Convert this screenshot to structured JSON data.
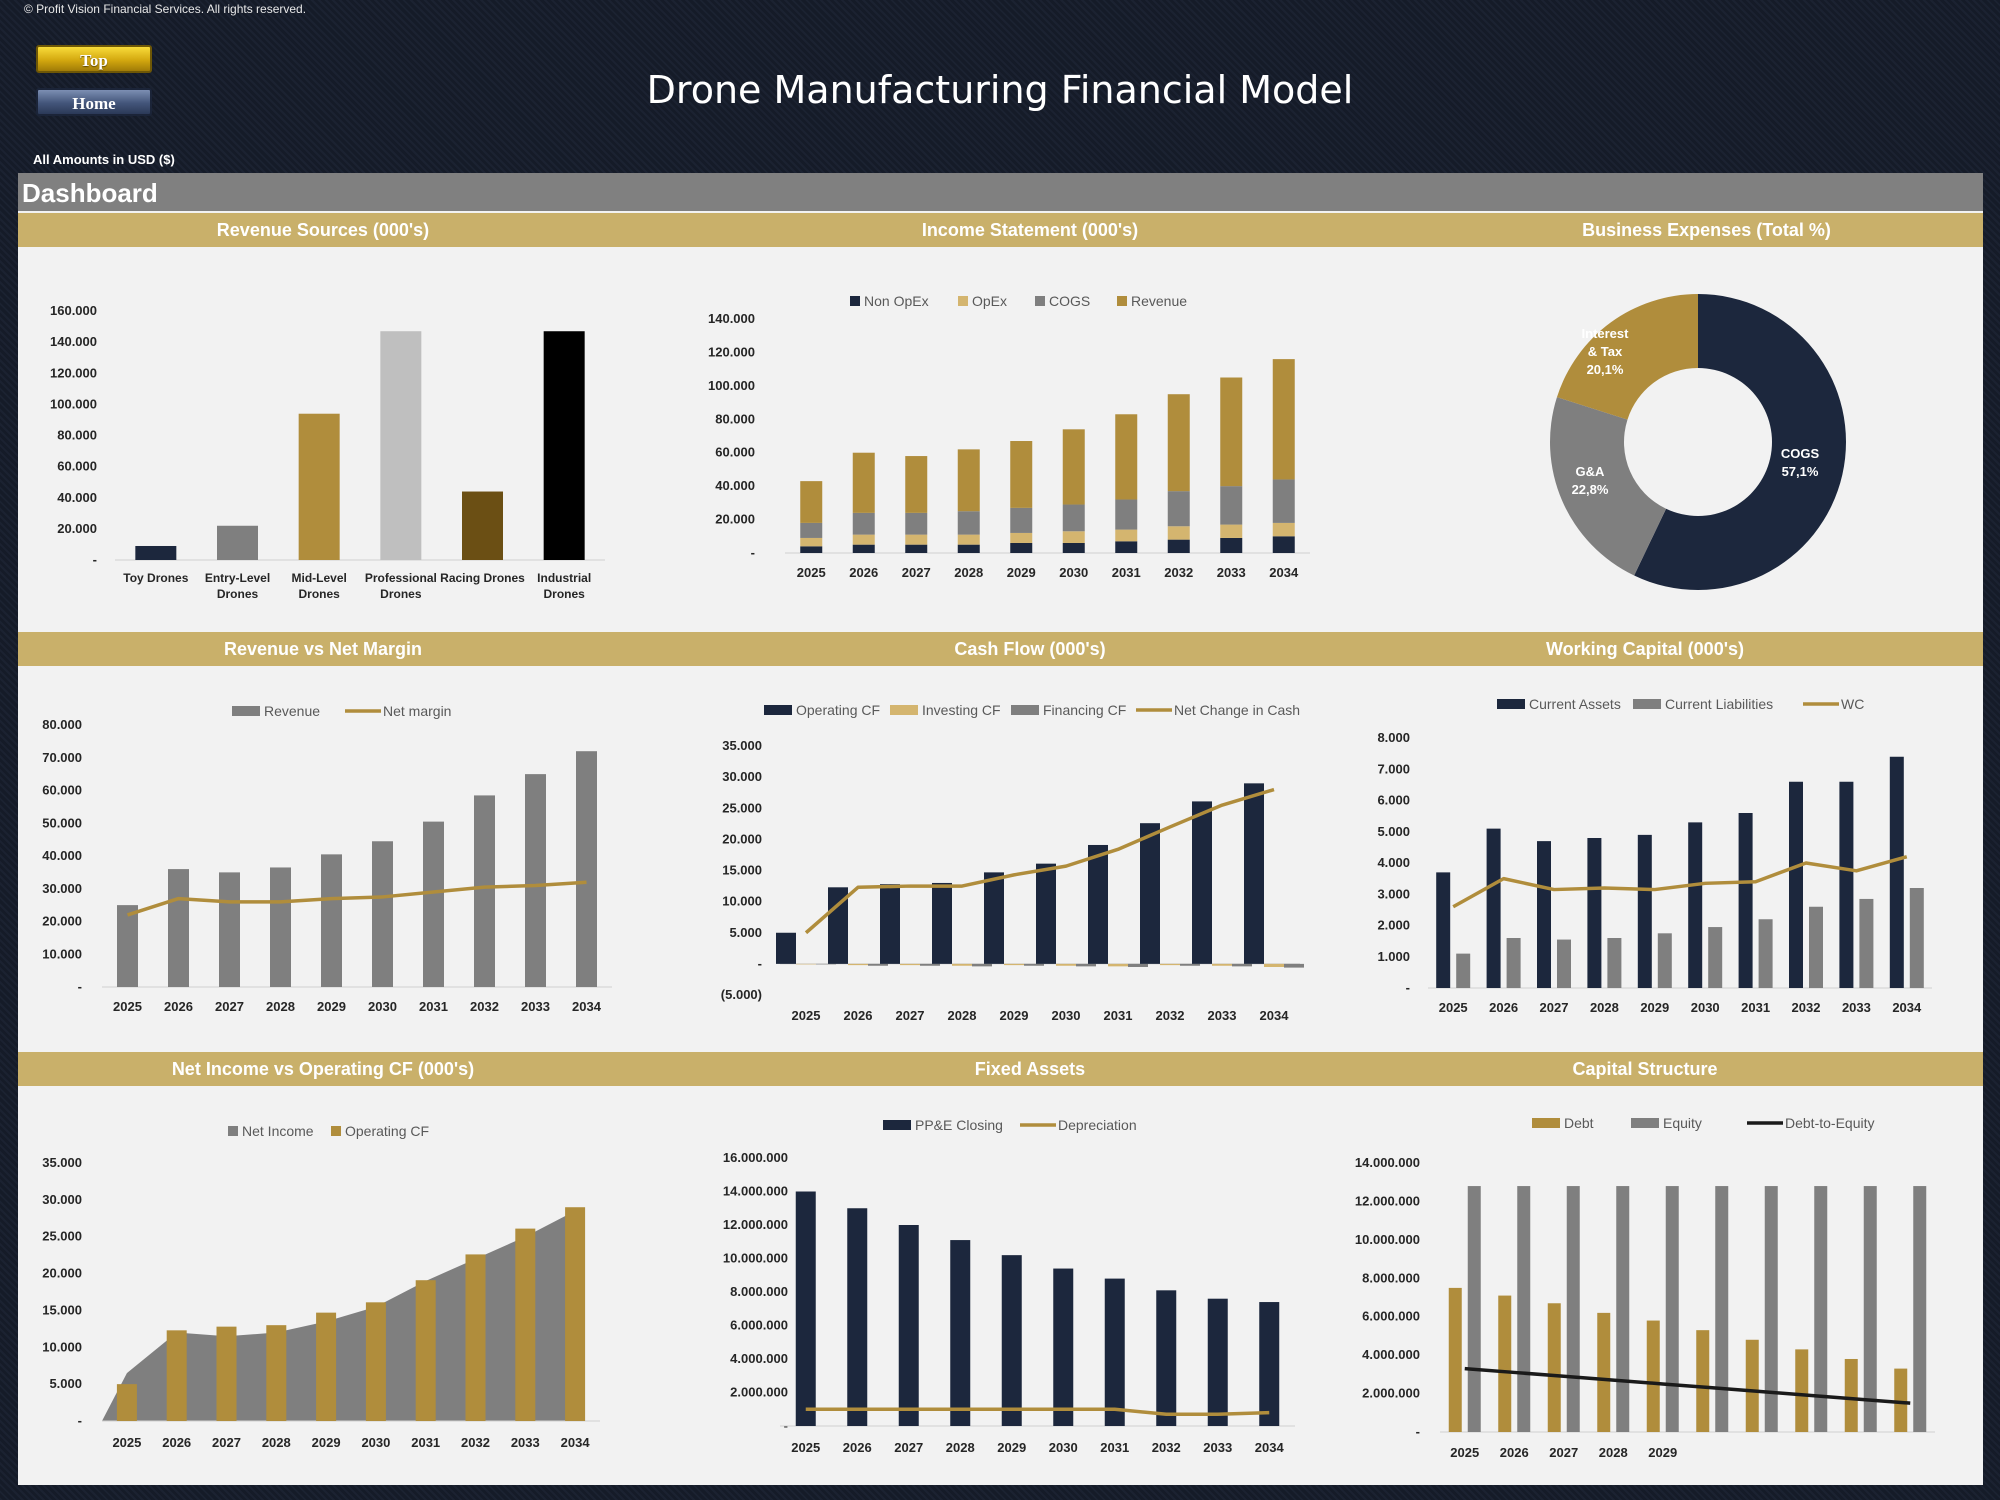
{
  "header": {
    "copyright": "© Profit Vision Financial Services. All rights reserved.",
    "top_button": "Top",
    "home_button": "Home",
    "title": "Drone Manufacturing Financial Model",
    "amounts_note": "All Amounts in  USD ($)",
    "dashboard_label": "Dashboard"
  },
  "colors": {
    "navy": "#1c273d",
    "gold": "#b08d3c",
    "gray": "#7f7f7f",
    "sand": "#d4b56f",
    "header_band": "#c9b06a"
  },
  "charts": [
    {
      "id": "revenue-sources",
      "title": "Revenue Sources (000's)",
      "type": "bar",
      "categories": [
        "Toy Drones",
        "Entry-Level Drones",
        "Mid-Level Drones",
        "Professional Drones",
        "Racing Drones",
        "Industrial Drones"
      ],
      "category_lines": [
        [
          "Toy Drones"
        ],
        [
          "Entry-Level",
          "Drones"
        ],
        [
          "Mid-Level",
          "Drones"
        ],
        [
          "Professional",
          "Drones"
        ],
        [
          "Racing Drones"
        ],
        [
          "Industrial",
          "Drones"
        ]
      ],
      "values": [
        9000,
        22000,
        94000,
        147000,
        44000,
        147000
      ],
      "bar_colors": [
        "#1c273d",
        "#7f7f7f",
        "#b08d3c",
        "#bfbfbf",
        "#6b4f14",
        "#000000"
      ],
      "ylim": [
        0,
        160000
      ],
      "yticks": [
        0,
        20000,
        40000,
        60000,
        80000,
        100000,
        120000,
        140000,
        160000
      ],
      "ytick_labels": [
        "-",
        "20.000",
        "40.000",
        "60.000",
        "80.000",
        "100.000",
        "120.000",
        "140.000",
        "160.000"
      ]
    },
    {
      "id": "income-statement",
      "title": "Income Statement (000's)",
      "type": "bar",
      "stacked": true,
      "categories": [
        "2025",
        "2026",
        "2027",
        "2028",
        "2029",
        "2030",
        "2031",
        "2032",
        "2033",
        "2034"
      ],
      "legend": [
        "Non OpEx",
        "OpEx",
        "COGS",
        "Revenue"
      ],
      "series": [
        {
          "name": "Non OpEx",
          "color": "#1c273d",
          "values": [
            4000,
            5000,
            5000,
            5000,
            6000,
            6000,
            7000,
            8000,
            9000,
            10000
          ]
        },
        {
          "name": "OpEx",
          "color": "#d4b56f",
          "values": [
            5000,
            6000,
            6000,
            6000,
            6000,
            7000,
            7000,
            8000,
            8000,
            8000
          ]
        },
        {
          "name": "COGS",
          "color": "#7f7f7f",
          "values": [
            9000,
            13000,
            13000,
            14000,
            15000,
            16000,
            18000,
            21000,
            23000,
            26000
          ]
        },
        {
          "name": "Revenue",
          "color": "#b08d3c",
          "values": [
            25000,
            36000,
            34000,
            37000,
            40000,
            45000,
            51000,
            58000,
            65000,
            72000
          ]
        }
      ],
      "ylim": [
        0,
        140000
      ],
      "yticks": [
        0,
        20000,
        40000,
        60000,
        80000,
        100000,
        120000,
        140000
      ],
      "ytick_labels": [
        "-",
        "20.000",
        "40.000",
        "60.000",
        "80.000",
        "100.000",
        "120.000",
        "140.000"
      ]
    },
    {
      "id": "business-expenses",
      "title": "Business Expenses (Total %)",
      "type": "pie",
      "donut": true,
      "slices": [
        {
          "label": "COGS",
          "value": 57.1,
          "value_label": "57,1%",
          "color": "#1c273d"
        },
        {
          "label": "G&A",
          "value": 22.8,
          "value_label": "22,8%",
          "color": "#7f7f7f"
        },
        {
          "label": "Interest & Tax",
          "label_lines": [
            "Interest",
            "& Tax"
          ],
          "value": 20.1,
          "value_label": "20,1%",
          "color": "#b08d3c"
        }
      ]
    },
    {
      "id": "revenue-vs-net-margin",
      "title": "Revenue vs Net Margin",
      "type": "bar",
      "categories": [
        "2025",
        "2026",
        "2027",
        "2028",
        "2029",
        "2030",
        "2031",
        "2032",
        "2033",
        "2034"
      ],
      "legend": [
        "Revenue",
        "Net margin"
      ],
      "series": [
        {
          "name": "Revenue",
          "kind": "bar",
          "color": "#7f7f7f",
          "values": [
            25000,
            36000,
            35000,
            36500,
            40500,
            44500,
            50500,
            58500,
            65000,
            72000
          ]
        },
        {
          "name": "Net margin",
          "kind": "line",
          "color": "#b08d3c",
          "values": [
            22000,
            27000,
            26000,
            26000,
            27000,
            27500,
            29000,
            30500,
            31000,
            32000
          ]
        }
      ],
      "ylim": [
        0,
        80000
      ],
      "yticks": [
        0,
        10000,
        20000,
        30000,
        40000,
        50000,
        60000,
        70000,
        80000
      ],
      "ytick_labels": [
        "-",
        "10.000",
        "20.000",
        "30.000",
        "40.000",
        "50.000",
        "60.000",
        "70.000",
        "80.000"
      ]
    },
    {
      "id": "cash-flow",
      "title": "Cash Flow (000's)",
      "type": "bar",
      "categories": [
        "2025",
        "2026",
        "2027",
        "2028",
        "2029",
        "2030",
        "2031",
        "2032",
        "2033",
        "2034"
      ],
      "legend": [
        "Operating CF",
        "Investing CF",
        "Financing CF",
        "Net Change in Cash"
      ],
      "series": [
        {
          "name": "Operating CF",
          "kind": "bar",
          "color": "#1c273d",
          "values": [
            5000,
            12300,
            12800,
            13000,
            14700,
            16100,
            19100,
            22600,
            26100,
            29000
          ]
        },
        {
          "name": "Investing CF",
          "kind": "bar",
          "color": "#d4b56f",
          "values": [
            0,
            -200,
            -200,
            -300,
            -200,
            -300,
            -400,
            -200,
            -300,
            -500
          ]
        },
        {
          "name": "Financing CF",
          "kind": "bar",
          "color": "#7f7f7f",
          "values": [
            0,
            -300,
            -300,
            -400,
            -300,
            -400,
            -500,
            -300,
            -400,
            -600
          ]
        },
        {
          "name": "Net Change in Cash",
          "kind": "line",
          "color": "#b08d3c",
          "values": [
            5000,
            12300,
            12500,
            12500,
            14300,
            15700,
            18400,
            22000,
            25500,
            28000
          ]
        }
      ],
      "ylim": [
        -5000,
        35000
      ],
      "yticks": [
        -5000,
        0,
        5000,
        10000,
        15000,
        20000,
        25000,
        30000,
        35000
      ],
      "ytick_labels": [
        "(5.000)",
        "-",
        "5.000",
        "10.000",
        "15.000",
        "20.000",
        "25.000",
        "30.000",
        "35.000"
      ]
    },
    {
      "id": "working-capital",
      "title": "Working Capital (000's)",
      "type": "bar",
      "categories": [
        "2025",
        "2026",
        "2027",
        "2028",
        "2029",
        "2030",
        "2031",
        "2032",
        "2033",
        "2034"
      ],
      "legend": [
        "Current Assets",
        "Current Liabilities",
        "WC"
      ],
      "series": [
        {
          "name": "Current Assets",
          "kind": "bar",
          "color": "#1c273d",
          "values": [
            3700,
            5100,
            4700,
            4800,
            4900,
            5300,
            5600,
            6600,
            6600,
            7400
          ]
        },
        {
          "name": "Current Liabilities",
          "kind": "bar",
          "color": "#7f7f7f",
          "values": [
            1100,
            1600,
            1550,
            1600,
            1750,
            1950,
            2200,
            2600,
            2850,
            3200
          ]
        },
        {
          "name": "WC",
          "kind": "line",
          "color": "#b08d3c",
          "values": [
            2600,
            3500,
            3150,
            3200,
            3150,
            3350,
            3400,
            4000,
            3750,
            4200
          ]
        }
      ],
      "ylim": [
        0,
        8000
      ],
      "yticks": [
        0,
        1000,
        2000,
        3000,
        4000,
        5000,
        6000,
        7000,
        8000
      ],
      "ytick_labels": [
        "-",
        "1.000",
        "2.000",
        "3.000",
        "4.000",
        "5.000",
        "6.000",
        "7.000",
        "8.000"
      ]
    },
    {
      "id": "net-income-vs-operating-cf",
      "title": "Net Income vs Operating CF (000's)",
      "type": "bar",
      "categories": [
        "2025",
        "2026",
        "2027",
        "2028",
        "2029",
        "2030",
        "2031",
        "2032",
        "2033",
        "2034"
      ],
      "legend": [
        "Net Income",
        "Operating CF"
      ],
      "series": [
        {
          "name": "Net Income",
          "kind": "area",
          "color": "#7f7f7f",
          "values": [
            6500,
            12000,
            11500,
            12000,
            13500,
            15500,
            19000,
            22000,
            25000,
            28500
          ]
        },
        {
          "name": "Operating CF",
          "kind": "bar",
          "color": "#b08d3c",
          "values": [
            5000,
            12300,
            12800,
            13000,
            14700,
            16100,
            19100,
            22600,
            26100,
            29000
          ]
        }
      ],
      "ylim": [
        0,
        35000
      ],
      "yticks": [
        0,
        5000,
        10000,
        15000,
        20000,
        25000,
        30000,
        35000
      ],
      "ytick_labels": [
        "-",
        "5.000",
        "10.000",
        "15.000",
        "20.000",
        "25.000",
        "30.000",
        "35.000"
      ]
    },
    {
      "id": "fixed-assets",
      "title": "Fixed Assets",
      "type": "bar",
      "categories": [
        "2025",
        "2026",
        "2027",
        "2028",
        "2029",
        "2030",
        "2031",
        "2032",
        "2033",
        "2034"
      ],
      "legend": [
        "PP&E Closing",
        "Depreciation"
      ],
      "series": [
        {
          "name": "PP&E Closing",
          "kind": "bar",
          "color": "#1c273d",
          "values": [
            14000000,
            13000000,
            12000000,
            11100000,
            10200000,
            9400000,
            8800000,
            8100000,
            7600000,
            7400000
          ]
        },
        {
          "name": "Depreciation",
          "kind": "line",
          "color": "#b08d3c",
          "values": [
            1000000,
            1000000,
            1000000,
            1000000,
            1000000,
            1000000,
            1000000,
            700000,
            700000,
            800000
          ]
        }
      ],
      "ylim": [
        0,
        16000000
      ],
      "yticks": [
        0,
        2000000,
        4000000,
        6000000,
        8000000,
        10000000,
        12000000,
        14000000,
        16000000
      ],
      "ytick_labels": [
        "-",
        "2.000.000",
        "4.000.000",
        "6.000.000",
        "8.000.000",
        "10.000.000",
        "12.000.000",
        "14.000.000",
        "16.000.000"
      ]
    },
    {
      "id": "capital-structure",
      "title": "Capital Structure",
      "type": "bar",
      "categories": [
        "2025",
        "2026",
        "2027",
        "2028",
        "2029",
        "",
        "",
        "",
        "",
        ""
      ],
      "legend": [
        "Debt",
        "Equity",
        "Debt-to-Equity"
      ],
      "series": [
        {
          "name": "Debt",
          "kind": "bar",
          "color": "#b08d3c",
          "values": [
            7500000,
            7100000,
            6700000,
            6200000,
            5800000,
            5300000,
            4800000,
            4300000,
            3800000,
            3300000
          ]
        },
        {
          "name": "Equity",
          "kind": "bar",
          "color": "#7f7f7f",
          "values": [
            12800000,
            12800000,
            12800000,
            12800000,
            12800000,
            12800000,
            12800000,
            12800000,
            12800000,
            12800000
          ]
        },
        {
          "name": "Debt-to-Equity",
          "kind": "line",
          "color": "#1a1a1a",
          "values": [
            3300000,
            3100000,
            2900000,
            2700000,
            2500000,
            2300000,
            2100000,
            1900000,
            1700000,
            1500000
          ]
        }
      ],
      "ylim": [
        0,
        14000000
      ],
      "yticks": [
        0,
        2000000,
        4000000,
        6000000,
        8000000,
        10000000,
        12000000,
        14000000
      ],
      "ytick_labels": [
        "-",
        "2.000.000",
        "4.000.000",
        "6.000.000",
        "8.000.000",
        "10.000.000",
        "12.000.000",
        "14.000.000"
      ]
    }
  ]
}
